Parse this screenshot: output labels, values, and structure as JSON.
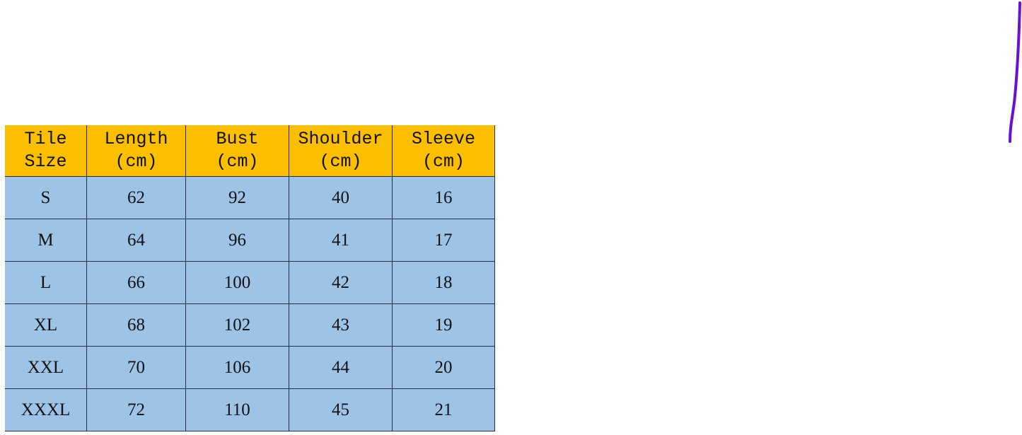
{
  "size_chart": {
    "headers": [
      {
        "line1": "Tile",
        "line2": "Size"
      },
      {
        "line1": "Length",
        "line2": "(cm)"
      },
      {
        "line1": "Bust",
        "line2": "(cm)"
      },
      {
        "line1": "Shoulder",
        "line2": "(cm)"
      },
      {
        "line1": "Sleeve",
        "line2": "(cm)"
      }
    ],
    "rows": [
      [
        "S",
        "62",
        "92",
        "40",
        "16"
      ],
      [
        "M",
        "64",
        "96",
        "41",
        "17"
      ],
      [
        "L",
        "66",
        "100",
        "42",
        "18"
      ],
      [
        "XL",
        "68",
        "102",
        "43",
        "19"
      ],
      [
        "XXL",
        "70",
        "106",
        "44",
        "20"
      ],
      [
        "XXXL",
        "72",
        "110",
        "45",
        "21"
      ]
    ],
    "colors": {
      "header_bg": "#fbbf00",
      "row_bg": "#9dc3e6"
    }
  },
  "annotation": {
    "stroke_color": "#6a0fd8"
  }
}
